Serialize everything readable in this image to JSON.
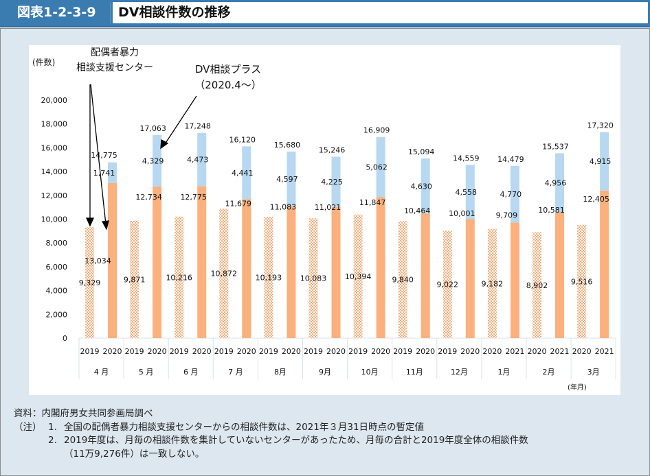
{
  "header": {
    "figure_label": "図表1-2-3-9",
    "title": "DV相談件数の推移"
  },
  "chart_data": {
    "type": "bar",
    "title": "DV相談件数の推移",
    "ylabel": "(件数)",
    "xlabel": "(年月)",
    "ylim": [
      0,
      20000
    ],
    "yticks": [
      0,
      2000,
      4000,
      6000,
      8000,
      10000,
      12000,
      14000,
      16000,
      18000,
      20000
    ],
    "ytick_labels": [
      "0",
      "2,000",
      "4,000",
      "6,000",
      "8,000",
      "10,000",
      "12,000",
      "14,000",
      "16,000",
      "18,000",
      "20,000"
    ],
    "grid": false,
    "months": [
      "4 月",
      "5 月",
      "6 月",
      "7 月",
      "8月",
      "9月",
      "10月",
      "11月",
      "12月",
      "1月",
      "2月",
      "3月"
    ],
    "prev_year_labels": [
      "2019",
      "2019",
      "2019",
      "2019",
      "2019",
      "2019",
      "2019",
      "2019",
      "2019",
      "2020",
      "2020",
      "2020"
    ],
    "curr_year_labels": [
      "2020",
      "2020",
      "2020",
      "2020",
      "2020",
      "2020",
      "2020",
      "2020",
      "2020",
      "2021",
      "2021",
      "2021"
    ],
    "series": [
      {
        "name": "配偶者暴力相談支援センター(前年度)",
        "values": [
          9329,
          9871,
          10216,
          10872,
          10193,
          10083,
          10394,
          9840,
          9022,
          9182,
          8902,
          9516
        ],
        "labels": [
          "9,329",
          "9,871",
          "10,216",
          "10,872",
          "10,193",
          "10,083",
          "10,394",
          "9,840",
          "9,022",
          "9,182",
          "8,902",
          "9,516"
        ],
        "color": "#f5ad7c",
        "pattern": "hatched"
      },
      {
        "name": "配偶者暴力相談支援センター",
        "values": [
          13034,
          12734,
          12775,
          11679,
          11083,
          11021,
          11847,
          10464,
          10001,
          9709,
          10581,
          12405
        ],
        "labels": [
          "13,034",
          "12,734",
          "12,775",
          "11,679",
          "11,083",
          "11,021",
          "11,847",
          "10,464",
          "10,001",
          "9,709",
          "10,581",
          "12,405"
        ],
        "color": "#fbb07e"
      },
      {
        "name": "DV相談プラス",
        "values": [
          1741,
          4329,
          4473,
          4441,
          4597,
          4225,
          5062,
          4630,
          4558,
          4770,
          4956,
          4915
        ],
        "labels": [
          "1,741",
          "4,329",
          "4,473",
          "4,441",
          "4,597",
          "4,225",
          "5,062",
          "4,630",
          "4,558",
          "4,770",
          "4,956",
          "4,915"
        ],
        "color": "#b7d8f0"
      }
    ],
    "totals": [
      14775,
      17063,
      17248,
      16120,
      15680,
      15246,
      16909,
      15094,
      14559,
      14479,
      15537,
      17320
    ],
    "total_labels": [
      "14,775",
      "17,063",
      "17,248",
      "16,120",
      "15,680",
      "15,246",
      "16,909",
      "15,094",
      "14,559",
      "14,479",
      "15,537",
      "17,320"
    ],
    "annotations": {
      "center_line1": "配偶者暴力",
      "center_line2": "相談支援センター",
      "plus_line1": "DV相談プラス",
      "plus_line2": "（2020.4〜）"
    }
  },
  "notes": {
    "source": "資料：内閣府男女共同参画局調べ",
    "note_prefix": "（注）",
    "items": [
      {
        "num": "1.",
        "lines": [
          "全国の配偶者暴力相談支援センターからの相談件数は、2021年３月31日時点の暫定値"
        ]
      },
      {
        "num": "2.",
        "lines": [
          "2019年度は、月毎の相談件数を集計していないセンターがあったため、月毎の合計と2019年度全体の相談件数",
          "（11万9,276件）は一致しない。"
        ]
      }
    ]
  }
}
